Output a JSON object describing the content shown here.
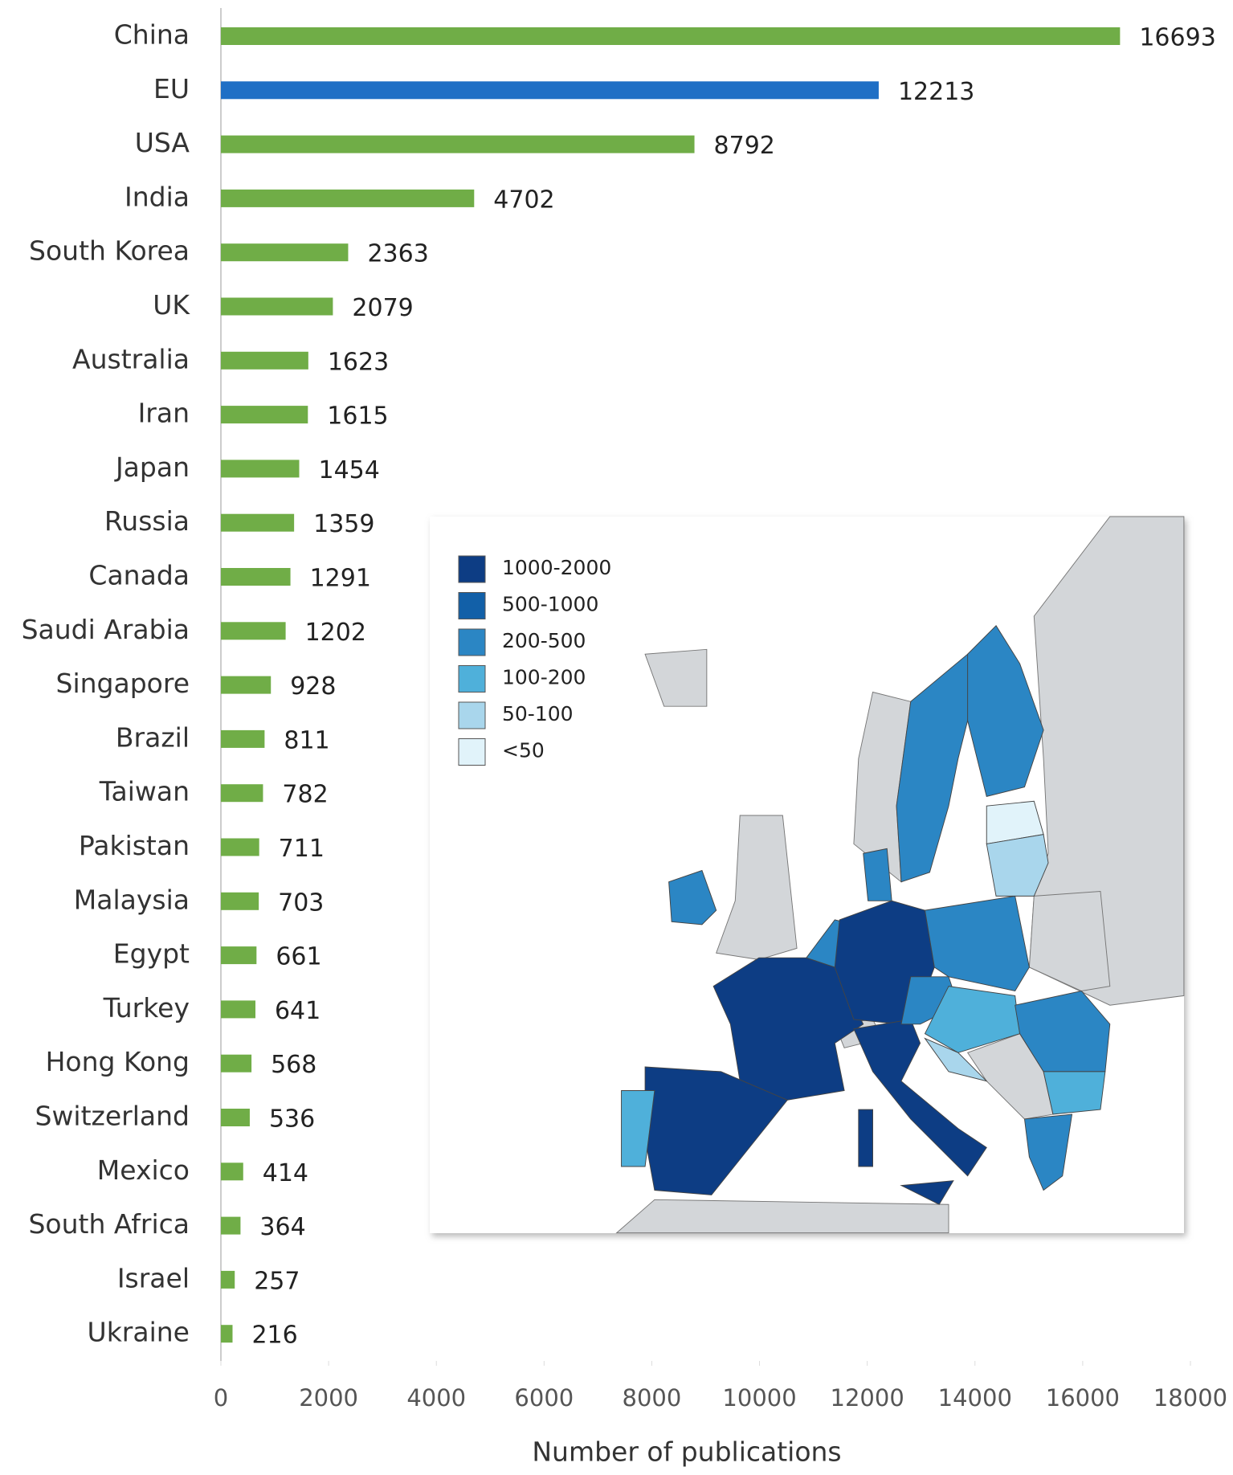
{
  "chart_data": {
    "type": "barh",
    "categories": [
      "China",
      "EU",
      "USA",
      "India",
      "South Korea",
      "UK",
      "Australia",
      "Iran",
      "Japan",
      "Russia",
      "Canada",
      "Saudi Arabia",
      "Singapore",
      "Brazil",
      "Taiwan",
      "Pakistan",
      "Malaysia",
      "Egypt",
      "Turkey",
      "Hong Kong",
      "Switzerland",
      "Mexico",
      "South Africa",
      "Israel",
      "Ukraine"
    ],
    "values": [
      16693,
      12213,
      8792,
      4702,
      2363,
      2079,
      1623,
      1615,
      1454,
      1359,
      1291,
      1202,
      928,
      811,
      782,
      711,
      703,
      661,
      641,
      568,
      536,
      414,
      364,
      257,
      216
    ],
    "colors": [
      "#70ad47",
      "#1f6fc5",
      "#70ad47",
      "#70ad47",
      "#70ad47",
      "#70ad47",
      "#70ad47",
      "#70ad47",
      "#70ad47",
      "#70ad47",
      "#70ad47",
      "#70ad47",
      "#70ad47",
      "#70ad47",
      "#70ad47",
      "#70ad47",
      "#70ad47",
      "#70ad47",
      "#70ad47",
      "#70ad47",
      "#70ad47",
      "#70ad47",
      "#70ad47",
      "#70ad47",
      "#70ad47"
    ],
    "xlabel": "Number of publications",
    "xlim": [
      0,
      18000
    ],
    "xticks": [
      0,
      2000,
      4000,
      6000,
      8000,
      10000,
      12000,
      14000,
      16000,
      18000
    ],
    "inset_legend": [
      {
        "label": "1000-2000",
        "color": "#0d3d84"
      },
      {
        "label": "500-1000",
        "color": "#1260a8"
      },
      {
        "label": "200-500",
        "color": "#2b86c4"
      },
      {
        "label": "100-200",
        "color": "#4fb0da"
      },
      {
        "label": "50-100",
        "color": "#a9d6ec"
      },
      {
        "label": "<50",
        "color": "#e1f3fa"
      }
    ]
  }
}
